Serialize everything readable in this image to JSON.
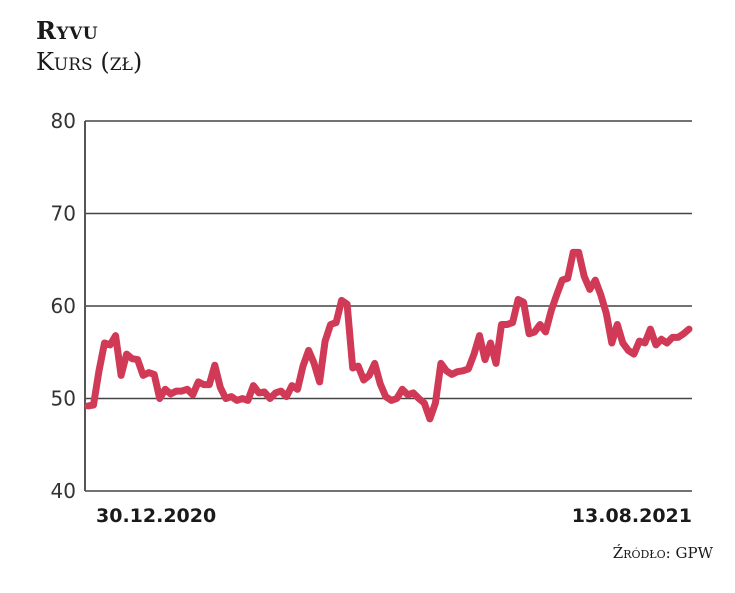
{
  "header": {
    "title": "Ryvu",
    "subtitle": "Kurs (zł)"
  },
  "footer": {
    "source": "Źródło: GPW"
  },
  "colors": {
    "line": "#d03a57",
    "grid": "#444444",
    "text": "#1a1a1a"
  },
  "chart_data": {
    "type": "line",
    "title": "Ryvu",
    "subtitle": "Kurs (zł)",
    "xlabel": "",
    "ylabel": "Kurs (zł)",
    "ylim": [
      40,
      80
    ],
    "yticks": [
      40,
      50,
      60,
      70,
      80
    ],
    "x_tick_labels": [
      "30.12.2020",
      "13.08.2021"
    ],
    "x_range": [
      "30.12.2020",
      "13.08.2021"
    ],
    "grid": true,
    "legend": null,
    "source": "Źródło: GPW",
    "series": [
      {
        "name": "Ryvu",
        "values": [
          49.2,
          49.3,
          53.0,
          56.0,
          55.8,
          56.8,
          52.5,
          54.8,
          54.3,
          54.2,
          52.5,
          52.8,
          52.6,
          50.0,
          51.0,
          50.5,
          50.8,
          50.8,
          51.0,
          50.4,
          51.8,
          51.5,
          51.5,
          53.6,
          51.2,
          50.0,
          50.2,
          49.8,
          50.0,
          49.8,
          51.4,
          50.6,
          50.7,
          50.0,
          50.6,
          50.8,
          50.2,
          51.4,
          51.0,
          53.5,
          55.2,
          53.8,
          51.8,
          56.2,
          58.0,
          58.2,
          60.6,
          60.2,
          53.3,
          53.5,
          52.0,
          52.5,
          53.8,
          51.6,
          50.2,
          49.8,
          50.0,
          51.0,
          50.4,
          50.6,
          50.0,
          49.5,
          47.8,
          49.5,
          53.8,
          53.0,
          52.6,
          52.9,
          53.0,
          53.2,
          54.8,
          56.8,
          54.2,
          56.0,
          53.8,
          58.0,
          58.0,
          58.2,
          60.7,
          60.4,
          57.0,
          57.2,
          58.0,
          57.2,
          59.5,
          61.2,
          62.8,
          63.0,
          65.8,
          65.8,
          63.2,
          61.8,
          62.8,
          61.2,
          59.2,
          56.0,
          58.0,
          56.0,
          55.2,
          54.8,
          56.2,
          56.0,
          57.5,
          55.8,
          56.4,
          56.0,
          56.6,
          56.6,
          57.0,
          57.5
        ]
      }
    ]
  }
}
